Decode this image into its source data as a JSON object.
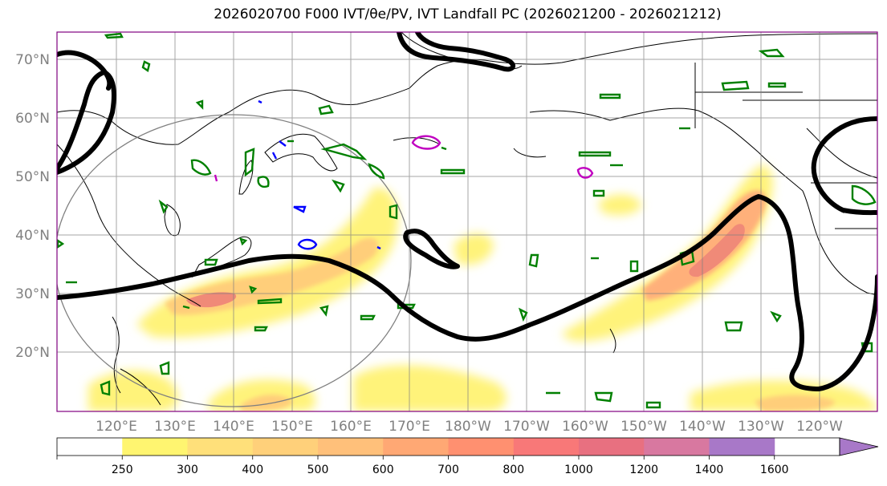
{
  "title": "2026020700 F000 IVT/θe/PV, IVT Landfall PC (2026021200 - 2026021212)",
  "map": {
    "lat_labels": [
      "70°N",
      "60°N",
      "50°N",
      "40°N",
      "30°N",
      "20°N"
    ],
    "lon_labels": [
      "120°E",
      "130°E",
      "140°E",
      "150°E",
      "160°E",
      "170°E",
      "180°W",
      "170°W",
      "160°W",
      "150°W",
      "140°W",
      "130°W",
      "120°W"
    ],
    "lat_range": [
      10,
      75
    ],
    "lon_range": [
      110,
      250
    ],
    "grid": true,
    "projection": "cylindrical",
    "colors": {
      "land_outline": "#000000",
      "grid": "#808080",
      "theta_e_contour": "#000000",
      "pv_contour_green": "#008000",
      "pv_contour_blue": "#0000ff",
      "pv_contour_magenta": "#c000c0",
      "landfall_circle": "#808080",
      "frame": "#800080"
    }
  },
  "colorbar": {
    "ticks": [
      "250",
      "300",
      "400",
      "500",
      "600",
      "700",
      "800",
      "1000",
      "1200",
      "1400",
      "1600"
    ],
    "colors": [
      "#ffffff",
      "#fff570",
      "#ffe07a",
      "#ffd07a",
      "#ffc07a",
      "#ffa874",
      "#ff9070",
      "#f87878",
      "#e87080",
      "#d878a0",
      "#a878c8"
    ],
    "extend": "max"
  }
}
